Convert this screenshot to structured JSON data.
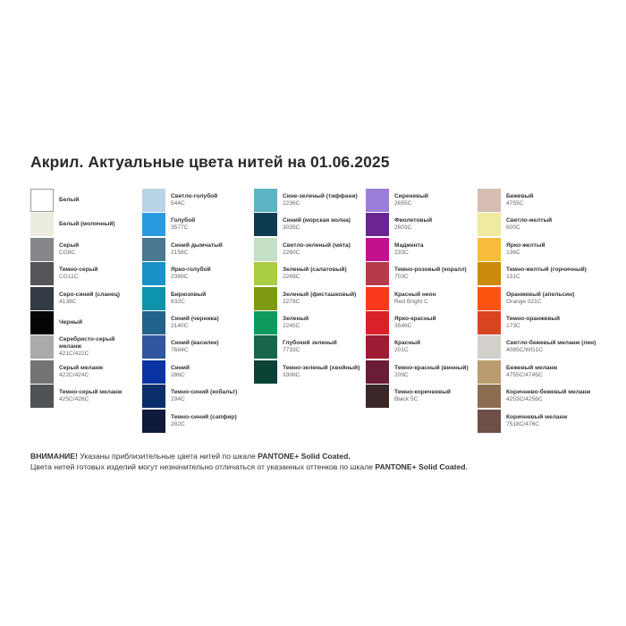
{
  "title": "Акрил. Актуальные цвета нитей на 01.06.2025",
  "columns": [
    [
      {
        "name": "Белый",
        "code": "",
        "color": "#ffffff"
      },
      {
        "name": "Белый (молочный)",
        "code": "",
        "color": "#ecebe0"
      },
      {
        "name": "Серый",
        "code": "CG8C",
        "color": "#86878b"
      },
      {
        "name": "Темно-серый",
        "code": "CG11C",
        "color": "#545559"
      },
      {
        "name": "Серо-синий (сланец)",
        "code": "4138C",
        "color": "#333b45"
      },
      {
        "name": "Черный",
        "code": "",
        "color": "#050505"
      },
      {
        "name": "Серебристо-серый меланж",
        "code": "421C/422C",
        "color": "#a9aaab"
      },
      {
        "name": "Серый меланж",
        "code": "422C/424C",
        "color": "#727374"
      },
      {
        "name": "Темно-серый меланж",
        "code": "425C/426C",
        "color": "#4f5356"
      }
    ],
    [
      {
        "name": "Светло-голубой",
        "code": "544C",
        "color": "#b9d3e6"
      },
      {
        "name": "Голубой",
        "code": "3577C",
        "color": "#2a9be0"
      },
      {
        "name": "Синий дымчатый",
        "code": "2158C",
        "color": "#4a7892"
      },
      {
        "name": "Ярко-голубой",
        "code": "2389C",
        "color": "#1892c8"
      },
      {
        "name": "Бирюзовый",
        "code": "632C",
        "color": "#0e93ad"
      },
      {
        "name": "Синий (черника)",
        "code": "2140C",
        "color": "#21638a"
      },
      {
        "name": "Синий (василек)",
        "code": "7684C",
        "color": "#3157a0"
      },
      {
        "name": "Синий",
        "code": "286C",
        "color": "#0b32a3"
      },
      {
        "name": "Темно-синий (кобальт)",
        "code": "294C",
        "color": "#0b2d6a"
      },
      {
        "name": "Темно-синий (сапфир)",
        "code": "282C",
        "color": "#101a3c"
      }
    ],
    [
      {
        "name": "Сине-зеленый (тиффани)",
        "code": "2236C",
        "color": "#5cb3c2"
      },
      {
        "name": "Синий (морская волна)",
        "code": "3035C",
        "color": "#0f3b50"
      },
      {
        "name": "Светло-зеленый (мята)",
        "code": "2260C",
        "color": "#c4e0c4"
      },
      {
        "name": "Зеленый (салатовый)",
        "code": "2269C",
        "color": "#a9cd45"
      },
      {
        "name": "Зеленый (фисташковый)",
        "code": "2279C",
        "color": "#7e9a13"
      },
      {
        "name": "Зеленый",
        "code": "2245C",
        "color": "#0e9a5e"
      },
      {
        "name": "Глубокий зеленый",
        "code": "7733C",
        "color": "#17664a"
      },
      {
        "name": "Темно-зеленый (хвойный)",
        "code": "3308C",
        "color": "#0b4236"
      }
    ],
    [
      {
        "name": "Сиреневый",
        "code": "2655C",
        "color": "#9a7ed8"
      },
      {
        "name": "Фиолетовый",
        "code": "2603C",
        "color": "#6a2590"
      },
      {
        "name": "Маджента",
        "code": "233C",
        "color": "#c3108c"
      },
      {
        "name": "Темно-розовый (коралл)",
        "code": "703C",
        "color": "#b53a4a"
      },
      {
        "name": "Красный неон",
        "code": "Red Bright C",
        "color": "#f93a1c"
      },
      {
        "name": "Ярко-красный",
        "code": "3546C",
        "color": "#dc2027"
      },
      {
        "name": "Красный",
        "code": "201C",
        "color": "#9e1c33"
      },
      {
        "name": "Темно-красный (винный)",
        "code": "209C",
        "color": "#6a1d34"
      },
      {
        "name": "Темно-коричневый",
        "code": "Black 5C",
        "color": "#3b2628"
      }
    ],
    [
      {
        "name": "Бежевый",
        "code": "4755C",
        "color": "#d7bcb2"
      },
      {
        "name": "Светло-желтый",
        "code": "600C",
        "color": "#efeaa0"
      },
      {
        "name": "Ярко-желтый",
        "code": "136C",
        "color": "#f9bc3a"
      },
      {
        "name": "Темно-желтый (горчичный)",
        "code": "131C",
        "color": "#cc8a0c"
      },
      {
        "name": "Оранжевый (апельсин)",
        "code": "Orange 021C",
        "color": "#fc5410"
      },
      {
        "name": "Темно-оранжевый",
        "code": "173C",
        "color": "#d8441f"
      },
      {
        "name": "Светло-бежевый меланж (лен)",
        "code": "4085C/WG1C",
        "color": "#d3d0cb"
      },
      {
        "name": "Бежевый меланж",
        "code": "4755C/4745C",
        "color": "#bb9c6e"
      },
      {
        "name": "Коричнево-бежевый меланж",
        "code": "4253C/4256C",
        "color": "#8b6e50"
      },
      {
        "name": "Коричневый меланж",
        "code": "7518C/476C",
        "color": "#6d4f46"
      }
    ]
  ],
  "footer": {
    "line1_bold": "ВНИМАНИЕ!",
    "line1_text": " Указаны приблизительные цвета нитей по шкале ",
    "line1_scale": "PANTONE+ Solid Coated.",
    "line2_text": "Цвета нитей готовых изделий могут незначительно отличаться от указанных оттенков по шкале ",
    "line2_scale": "PANTONE+ Solid Coated."
  }
}
